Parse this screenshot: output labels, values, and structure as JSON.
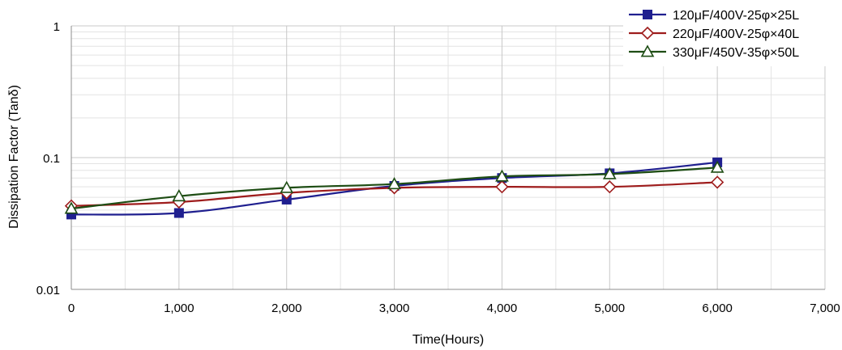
{
  "chart_data": {
    "type": "line",
    "title": "",
    "xlabel": "Time(Hours)",
    "ylabel": "Dissipation Factor (Tanδ)",
    "xlim": [
      0,
      7000
    ],
    "ylim": [
      0.01,
      1
    ],
    "yscale": "log",
    "grid": true,
    "legend_position": "top-right",
    "x_ticks": [
      {
        "value": 0,
        "label": "0"
      },
      {
        "value": 1000,
        "label": "1,000"
      },
      {
        "value": 2000,
        "label": "2,000"
      },
      {
        "value": 3000,
        "label": "3,000"
      },
      {
        "value": 4000,
        "label": "4,000"
      },
      {
        "value": 5000,
        "label": "5,000"
      },
      {
        "value": 6000,
        "label": "6,000"
      },
      {
        "value": 7000,
        "label": "7,000"
      }
    ],
    "y_ticks": [
      {
        "value": 0.01,
        "label": "0.01"
      },
      {
        "value": 0.1,
        "label": "0.1"
      },
      {
        "value": 1,
        "label": "1"
      }
    ],
    "x": [
      0,
      1000,
      2000,
      3000,
      4000,
      5000,
      6000
    ],
    "series": [
      {
        "name": "120μF/400V-25φ×25L",
        "color": "#1f1f8f",
        "marker": "square-filled",
        "values": [
          0.037,
          0.038,
          0.048,
          0.061,
          0.07,
          0.076,
          0.092
        ]
      },
      {
        "name": "220μF/400V-25φ×40L",
        "color": "#9e1c1c",
        "marker": "diamond-open",
        "values": [
          0.043,
          0.046,
          0.054,
          0.059,
          0.06,
          0.06,
          0.065
        ]
      },
      {
        "name": "330μF/450V-35φ×50L",
        "color": "#1e4d14",
        "marker": "triangle-open",
        "values": [
          0.041,
          0.051,
          0.059,
          0.063,
          0.072,
          0.075,
          0.084
        ]
      }
    ]
  }
}
